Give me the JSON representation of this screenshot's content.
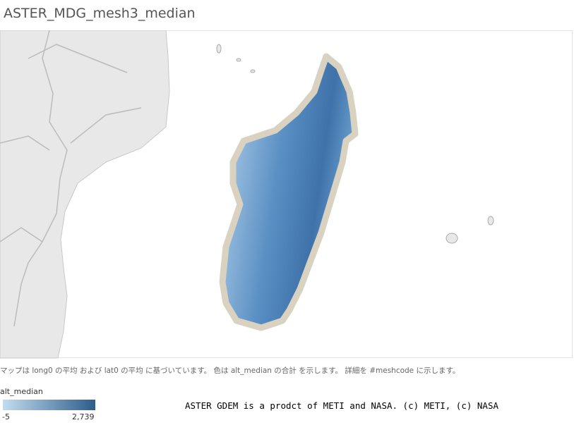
{
  "header": {
    "title": "ASTER_MDG_mesh3_median"
  },
  "caption": "マップは long0 の平均 および lat0 の平均 に基づいています。 色は alt_median の合計 を示します。 詳細を #meshcode に示します。",
  "legend": {
    "title": "alt_median",
    "min": "-5",
    "max": "2,739"
  },
  "credit": "ASTER GDEM is a prodct of METI and NASA. (c) METI, (c) NASA"
}
